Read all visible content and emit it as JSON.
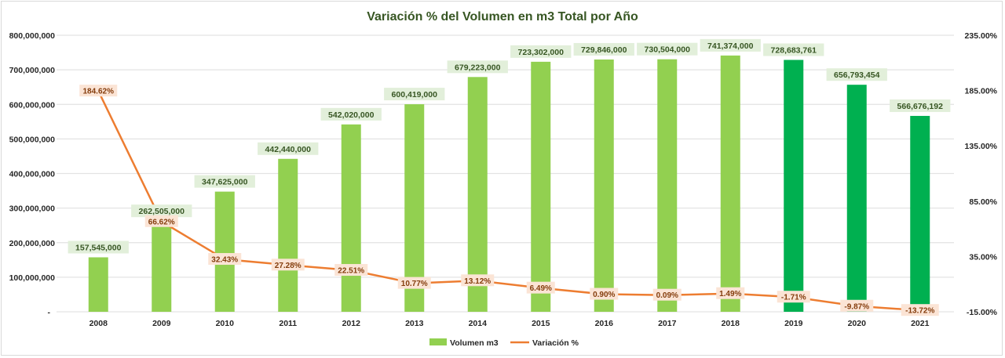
{
  "chart_data": {
    "type": "bar",
    "title": "Variación % del Volumen en m3 Total por Año",
    "categories": [
      "2008",
      "2009",
      "2010",
      "2011",
      "2012",
      "2013",
      "2014",
      "2015",
      "2016",
      "2017",
      "2018",
      "2019",
      "2020",
      "2021"
    ],
    "series": [
      {
        "name": "Volumen m3",
        "type": "bar",
        "axis": "left",
        "values": [
          157545000,
          262505000,
          347625000,
          442440000,
          542020000,
          600419000,
          679223000,
          723302000,
          729846000,
          730504000,
          741374000,
          728683761,
          656793454,
          566676192
        ],
        "labels": [
          "157,545,000",
          "262,505,000",
          "347,625,000",
          "442,440,000",
          "542,020,000",
          "600,419,000",
          "679,223,000",
          "723,302,000",
          "729,846,000",
          "730,504,000",
          "741,374,000",
          "728,683,761",
          "656,793,454",
          "566,676,192"
        ],
        "color": "#92d050",
        "highlight_color": "#00b050",
        "highlight_from": "2019"
      },
      {
        "name": "Variación %",
        "type": "line",
        "axis": "right",
        "values": [
          184.62,
          66.62,
          32.43,
          27.28,
          22.51,
          10.77,
          13.12,
          6.49,
          0.9,
          0.09,
          1.49,
          -1.71,
          -9.87,
          -13.72
        ],
        "labels": [
          "184.62%",
          "66.62%",
          "32.43%",
          "27.28%",
          "22.51%",
          "10.77%",
          "13.12%",
          "6.49%",
          "0.90%",
          "0.09%",
          "1.49%",
          "-1.71%",
          "-9.87%",
          "-13.72%"
        ],
        "color": "#ed7d31"
      }
    ],
    "left_axis": {
      "ylim": [
        0,
        800000000
      ],
      "ticks": [
        "-",
        "100,000,000",
        "200,000,000",
        "300,000,000",
        "400,000,000",
        "500,000,000",
        "600,000,000",
        "700,000,000",
        "800,000,000"
      ]
    },
    "right_axis": {
      "ylim": [
        -15,
        235
      ],
      "ticks": [
        "-15.00%",
        "35.00%",
        "85.00%",
        "135.00%",
        "185.00%",
        "235.00%"
      ]
    },
    "grid": true,
    "legend_position": "bottom"
  }
}
